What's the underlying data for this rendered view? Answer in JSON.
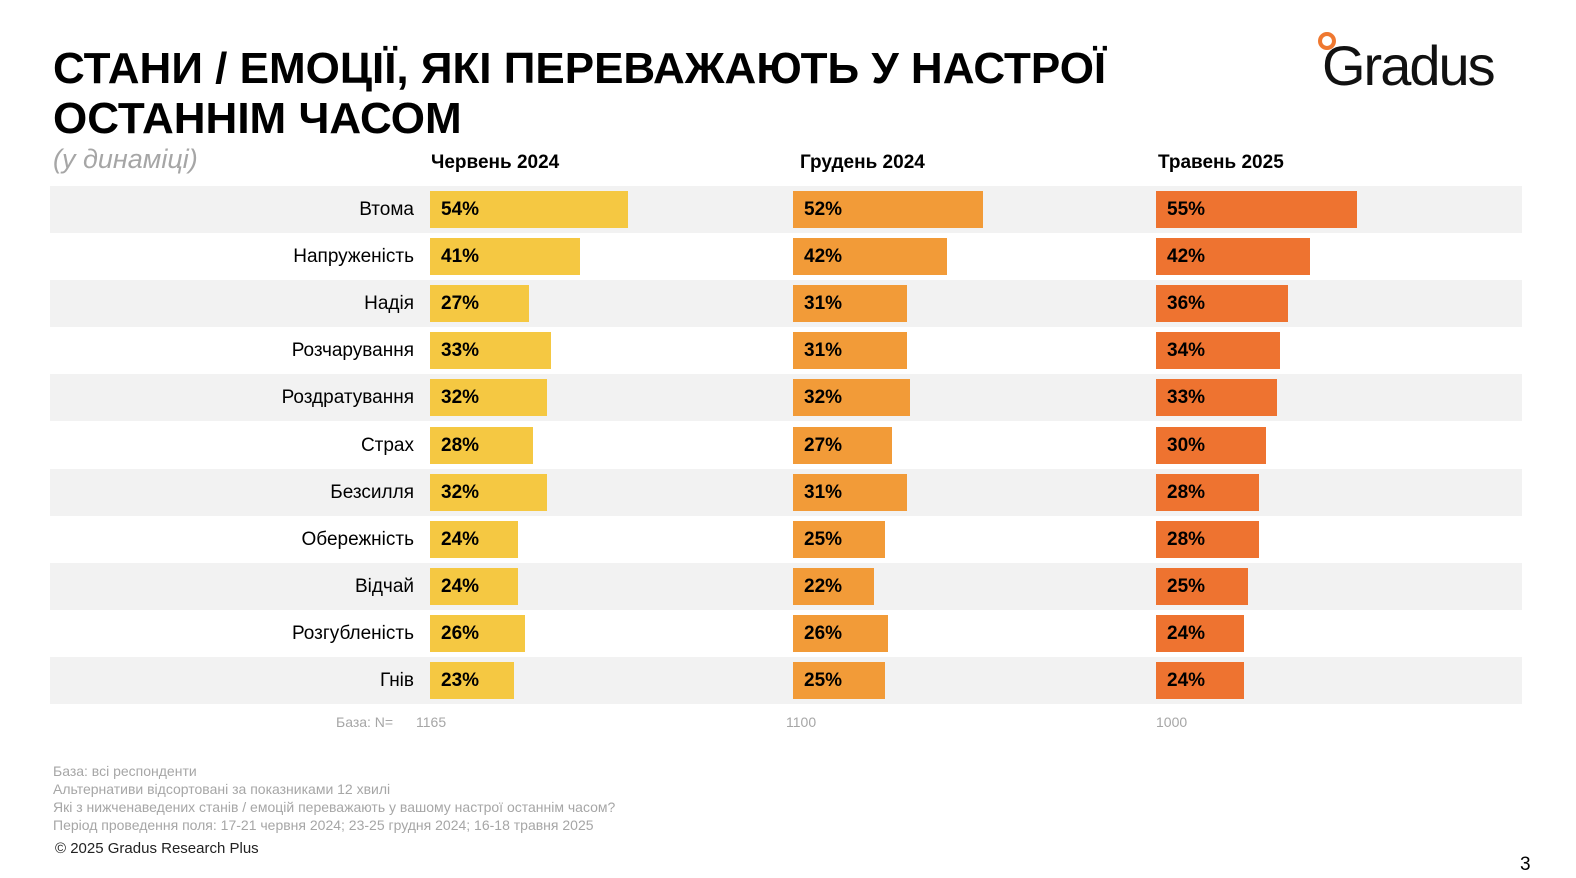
{
  "header": {
    "title": "СТАНИ / ЕМОЦІЇ, ЯКІ ПЕРЕВАЖАЮТЬ У НАСТРОЇ ОСТАННІМ ЧАСОМ",
    "subtitle": "(у динаміці)",
    "logo_text": "Gradus"
  },
  "colors": {
    "series": [
      "#f5c842",
      "#f29b38",
      "#ee7330"
    ],
    "band": "#f2f2f2",
    "logo_accent": "#ef7830"
  },
  "chart_data": {
    "type": "bar",
    "orientation": "horizontal",
    "categories": [
      "Втома",
      "Напруженість",
      "Надія",
      "Розчарування",
      "Роздратування",
      "Страх",
      "Безсилля",
      "Обережність",
      "Відчай",
      "Розгубленість",
      "Гнів"
    ],
    "series": [
      {
        "name": "Червень 2024",
        "values": [
          54,
          41,
          27,
          33,
          32,
          28,
          32,
          24,
          24,
          26,
          23
        ]
      },
      {
        "name": "Грудень 2024",
        "values": [
          52,
          42,
          31,
          31,
          32,
          27,
          31,
          25,
          22,
          26,
          25
        ]
      },
      {
        "name": "Травень 2025",
        "values": [
          55,
          42,
          36,
          34,
          33,
          30,
          28,
          28,
          25,
          24,
          24
        ]
      }
    ],
    "value_suffix": "%",
    "base_label": "База: N=",
    "base_values": [
      "1165",
      "1100",
      "1000"
    ]
  },
  "notes": [
    "База: всі респонденти",
    "Альтернативи відсортовані за показниками 12 хвилі",
    "Які з нижченаведених станів / емоцій переважають у вашому настрої останнім часом?",
    "Період проведення поля: 17-21 червня 2024; 23-25 грудня 2024; 16-18 травня 2025"
  ],
  "footer": {
    "copyright": "© 2025 Gradus Research Plus",
    "page_number": "3"
  }
}
